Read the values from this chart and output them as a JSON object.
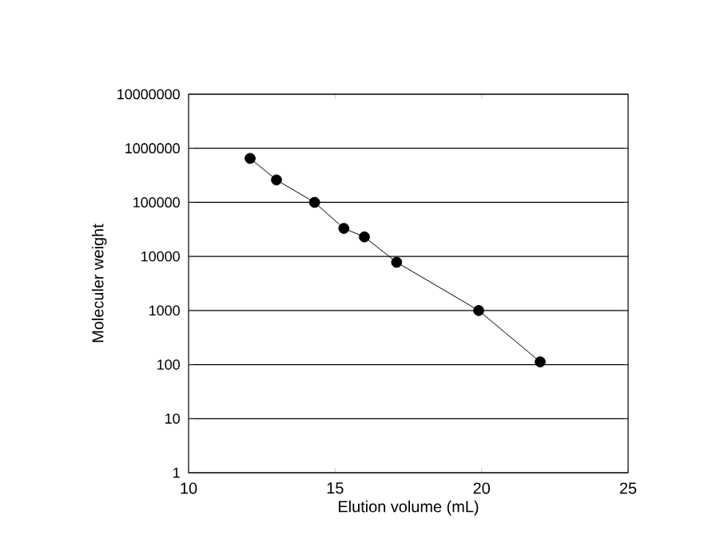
{
  "chart_data": {
    "type": "line",
    "xlabel": "Elution volume (mL)",
    "ylabel": "Moleculer weight",
    "x": [
      12.1,
      13.0,
      14.3,
      15.3,
      16.0,
      17.1,
      19.9,
      22.0
    ],
    "series": [
      {
        "color": "#000000",
        "values": [
          650000,
          260000,
          100000,
          33000,
          23000,
          7800,
          1000,
          112
        ]
      }
    ],
    "xlim": [
      10,
      25
    ],
    "xticks": [
      10,
      15,
      20,
      25
    ],
    "ylim": [
      1,
      10000000
    ],
    "yticks": [
      1,
      10,
      100,
      1000,
      10000,
      100000,
      1000000,
      10000000
    ],
    "log": "y",
    "grid": "y",
    "marker": "circle",
    "line_style": "solid"
  }
}
